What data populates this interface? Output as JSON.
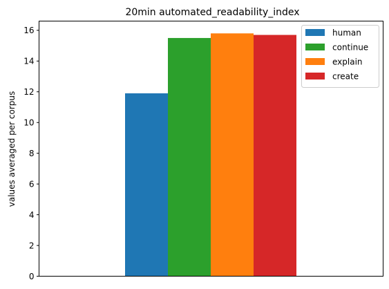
{
  "chart_data": {
    "type": "bar",
    "title": "20min automated_readability_index",
    "xlabel": "",
    "ylabel": "values averaged per corpus",
    "ylim": [
      0,
      16.6
    ],
    "yticks": [
      0,
      2,
      4,
      6,
      8,
      10,
      12,
      14,
      16
    ],
    "grid": false,
    "legend_position": "top-right",
    "series": [
      {
        "name": "human",
        "value": 11.9,
        "color": "#1f77b4"
      },
      {
        "name": "continue",
        "value": 15.5,
        "color": "#2ca02c"
      },
      {
        "name": "explain",
        "value": 15.8,
        "color": "#ff7f0e"
      },
      {
        "name": "create",
        "value": 15.7,
        "color": "#d62728"
      }
    ]
  }
}
